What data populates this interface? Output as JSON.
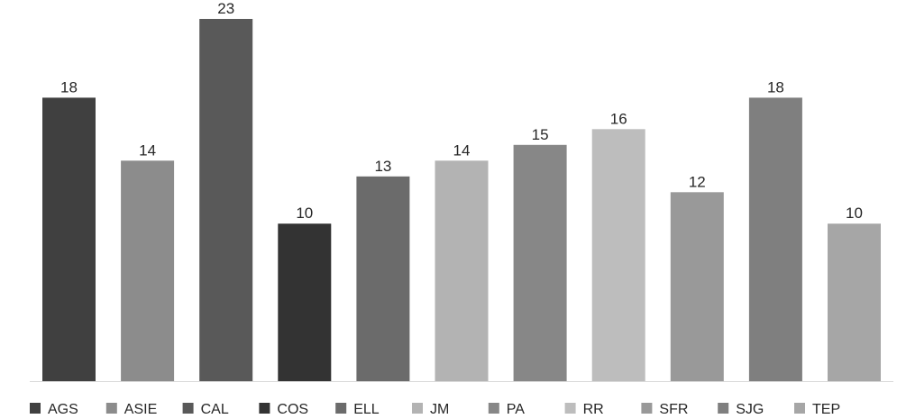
{
  "chart_data": {
    "type": "bar",
    "title": "",
    "xlabel": "",
    "ylabel": "",
    "ylim": [
      0,
      23
    ],
    "grid": false,
    "legend_position": "bottom",
    "categories": [
      "AGS",
      "ASIE",
      "CAL",
      "COS",
      "ELL",
      "JM",
      "PA",
      "RR",
      "SFR",
      "SJG",
      "TEP"
    ],
    "values": [
      18,
      14,
      23,
      10,
      13,
      14,
      15,
      16,
      12,
      18,
      10
    ],
    "colors": [
      "#404040",
      "#8c8c8c",
      "#595959",
      "#333333",
      "#6b6b6b",
      "#b3b3b3",
      "#878787",
      "#bdbdbd",
      "#999999",
      "#7f7f7f",
      "#a6a6a6"
    ],
    "data_labels": true
  }
}
